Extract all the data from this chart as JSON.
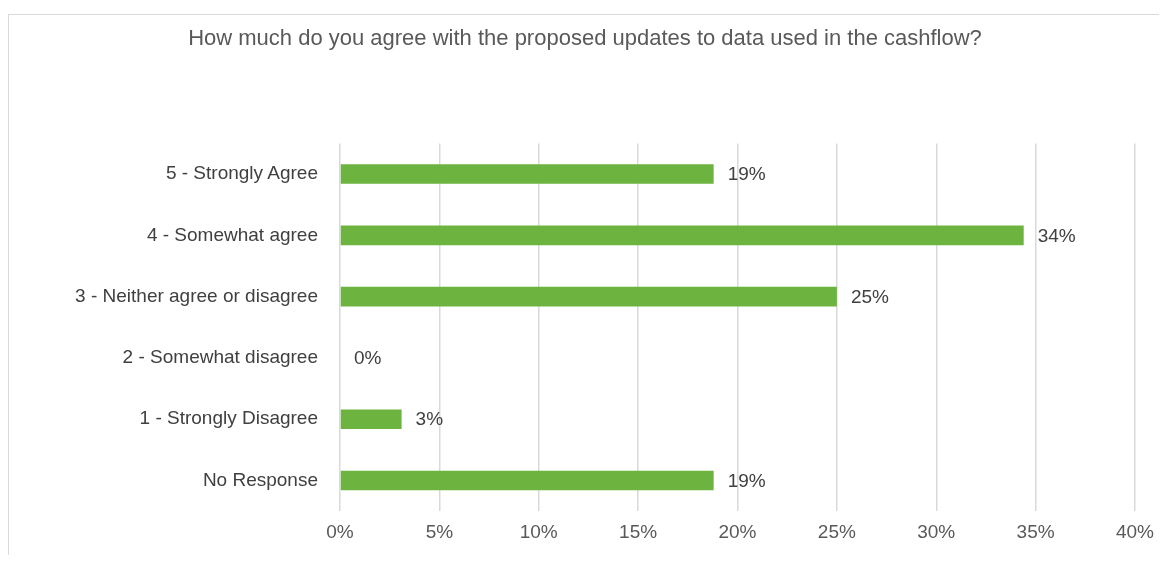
{
  "chart_data": {
    "type": "bar",
    "orientation": "horizontal",
    "title": "How much do you agree with the proposed updates to data used in the cashflow?",
    "categories": [
      "5 - Strongly Agree",
      "4 - Somewhat agree",
      "3 - Neither agree or disagree",
      "2 - Somewhat disagree",
      "1 - Strongly Disagree",
      "No Response"
    ],
    "values": [
      18.8,
      34.4,
      25,
      0,
      3.1,
      18.8
    ],
    "value_labels": [
      "19%",
      "34%",
      "25%",
      "0%",
      "3%",
      "19%"
    ],
    "color": "#6db33f",
    "xlim": [
      0,
      40
    ],
    "xticks": [
      {
        "value": 0,
        "label": "0%"
      },
      {
        "value": 5,
        "label": "5%"
      },
      {
        "value": 10,
        "label": "10%"
      },
      {
        "value": 15,
        "label": "15%"
      },
      {
        "value": 20,
        "label": "20%"
      },
      {
        "value": 25,
        "label": "25%"
      },
      {
        "value": 30,
        "label": "30%"
      },
      {
        "value": 35,
        "label": "35%"
      },
      {
        "value": 40,
        "label": "40%"
      }
    ],
    "grid": "x",
    "legend": false
  }
}
